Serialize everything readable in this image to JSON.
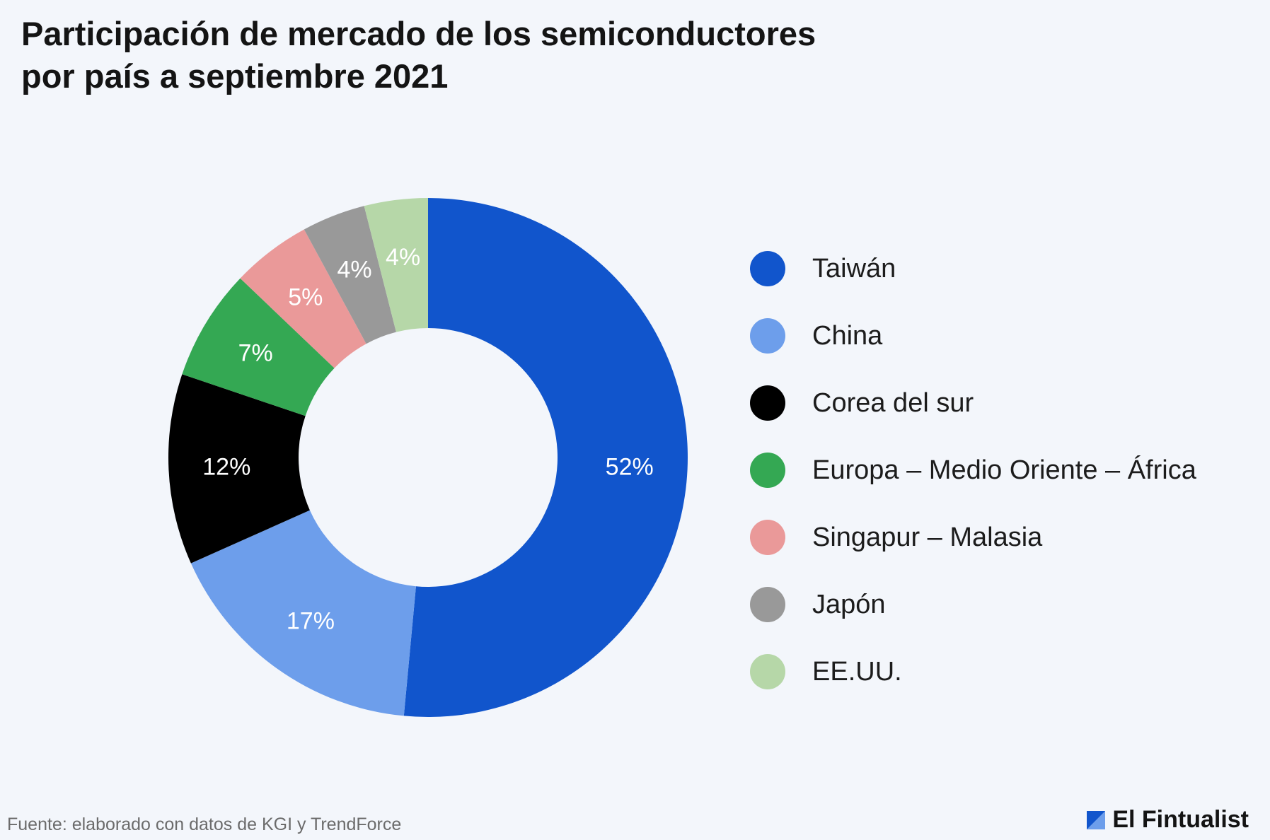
{
  "title": {
    "line1": "Participación de mercado de los semiconductores",
    "line2": "por país a septiembre 2021"
  },
  "source": "Fuente: elaborado con datos de KGI y TrendForce",
  "brand": {
    "name": "El Fintualist",
    "icon": "fintual-logo-icon"
  },
  "chart_data": {
    "type": "pie",
    "title": "Participación de mercado de los semiconductores por país a septiembre 2021",
    "donut": true,
    "legend_position": "right",
    "categories": [
      "Taiwán",
      "China",
      "Corea del sur",
      "Europa – Medio Oriente – África",
      "Singapur – Malasia",
      "Japón",
      "EE.UU."
    ],
    "values": [
      52,
      17,
      12,
      7,
      5,
      4,
      4
    ],
    "labels": [
      "52%",
      "17%",
      "12%",
      "7%",
      "5%",
      "4%",
      "4%"
    ],
    "colors": [
      "#1155cc",
      "#6d9eeb",
      "#000000",
      "#34a853",
      "#ea9999",
      "#999999",
      "#b6d7a8"
    ]
  }
}
